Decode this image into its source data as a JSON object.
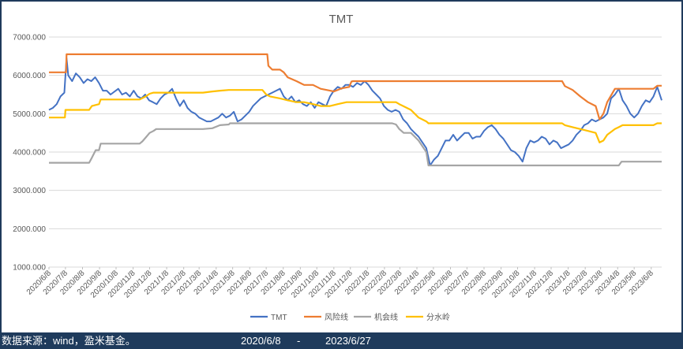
{
  "chart_data": {
    "type": "line",
    "title": "TMT",
    "xlabel": "",
    "ylabel": "",
    "ylim": [
      1000,
      7000
    ],
    "y_ticks": [
      "1000.000",
      "2000.000",
      "3000.000",
      "4000.000",
      "5000.000",
      "6000.000",
      "7000.000"
    ],
    "y_tick_values": [
      1000,
      2000,
      3000,
      4000,
      5000,
      6000,
      7000
    ],
    "x_range": [
      "2020/6/8",
      "2023/6/27"
    ],
    "x_ticks": [
      "2020/6/8",
      "2020/7/8",
      "2020/8/8",
      "2020/9/8",
      "2020/10/8",
      "2020/11/8",
      "2020/12/8",
      "2021/1/8",
      "2021/2/8",
      "2021/3/8",
      "2021/4/8",
      "2021/5/8",
      "2021/6/8",
      "2021/7/8",
      "2021/8/8",
      "2021/9/8",
      "2021/10/8",
      "2021/11/8",
      "2021/12/8",
      "2022/1/8",
      "2022/2/8",
      "2022/3/8",
      "2022/4/8",
      "2022/5/8",
      "2022/6/8",
      "2022/7/8",
      "2022/8/8",
      "2022/9/8",
      "2022/10/8",
      "2022/11/8",
      "2022/12/8",
      "2023/1/8",
      "2023/2/8",
      "2023/3/8",
      "2023/4/8",
      "2023/5/8",
      "2023/6/8"
    ],
    "grid": true,
    "legend": "bottom",
    "series": [
      {
        "name": "TMT",
        "color": "#4472c4",
        "x": [
          "2020/6/8",
          "2020/6/15",
          "2020/6/22",
          "2020/6/29",
          "2020/7/6",
          "2020/7/10",
          "2020/7/13",
          "2020/7/20",
          "2020/7/27",
          "2020/8/3",
          "2020/8/10",
          "2020/8/17",
          "2020/8/24",
          "2020/8/31",
          "2020/9/7",
          "2020/9/14",
          "2020/9/21",
          "2020/9/28",
          "2020/10/12",
          "2020/10/19",
          "2020/10/26",
          "2020/11/2",
          "2020/11/9",
          "2020/11/16",
          "2020/11/23",
          "2020/11/30",
          "2020/12/7",
          "2020/12/14",
          "2020/12/21",
          "2020/12/28",
          "2021/1/4",
          "2021/1/11",
          "2021/1/18",
          "2021/1/25",
          "2021/2/1",
          "2021/2/8",
          "2021/2/15",
          "2021/2/22",
          "2021/3/1",
          "2021/3/8",
          "2021/3/15",
          "2021/3/22",
          "2021/3/29",
          "2021/4/5",
          "2021/4/12",
          "2021/4/19",
          "2021/4/26",
          "2021/5/3",
          "2021/5/10",
          "2021/5/17",
          "2021/5/24",
          "2021/5/31",
          "2021/6/7",
          "2021/6/14",
          "2021/6/21",
          "2021/6/28",
          "2021/7/5",
          "2021/7/12",
          "2021/7/19",
          "2021/7/26",
          "2021/8/2",
          "2021/8/9",
          "2021/8/16",
          "2021/8/23",
          "2021/8/30",
          "2021/9/6",
          "2021/9/13",
          "2021/9/20",
          "2021/9/27",
          "2021/10/4",
          "2021/10/11",
          "2021/10/18",
          "2021/10/25",
          "2021/11/1",
          "2021/11/8",
          "2021/11/15",
          "2021/11/22",
          "2021/11/29",
          "2021/12/6",
          "2021/12/13",
          "2021/12/20",
          "2021/12/27",
          "2022/1/3",
          "2022/1/10",
          "2022/1/17",
          "2022/1/24",
          "2022/1/31",
          "2022/2/7",
          "2022/2/14",
          "2022/2/21",
          "2022/2/28",
          "2022/3/7",
          "2022/3/14",
          "2022/3/21",
          "2022/3/28",
          "2022/4/4",
          "2022/4/11",
          "2022/4/18",
          "2022/4/25",
          "2022/5/2",
          "2022/5/9",
          "2022/5/16",
          "2022/5/23",
          "2022/5/30",
          "2022/6/6",
          "2022/6/13",
          "2022/6/20",
          "2022/6/27",
          "2022/7/4",
          "2022/7/11",
          "2022/7/18",
          "2022/7/25",
          "2022/8/1",
          "2022/8/8",
          "2022/8/15",
          "2022/8/22",
          "2022/8/29",
          "2022/9/5",
          "2022/9/12",
          "2022/9/19",
          "2022/9/26",
          "2022/10/3",
          "2022/10/10",
          "2022/10/17",
          "2022/10/24",
          "2022/10/31",
          "2022/11/7",
          "2022/11/14",
          "2022/11/21",
          "2022/11/28",
          "2022/12/5",
          "2022/12/12",
          "2022/12/19",
          "2022/12/26",
          "2023/1/2",
          "2023/1/9",
          "2023/1/16",
          "2023/1/23",
          "2023/1/30",
          "2023/2/6",
          "2023/2/13",
          "2023/2/20",
          "2023/2/27",
          "2023/3/6",
          "2023/3/13",
          "2023/3/20",
          "2023/3/27",
          "2023/4/3",
          "2023/4/10",
          "2023/4/17",
          "2023/4/24",
          "2023/5/1",
          "2023/5/8",
          "2023/5/15",
          "2023/5/22",
          "2023/5/29",
          "2023/6/5",
          "2023/6/12",
          "2023/6/19",
          "2023/6/27"
        ],
        "y": [
          5100,
          5150,
          5250,
          5450,
          5550,
          6450,
          6000,
          5850,
          6050,
          5950,
          5800,
          5900,
          5850,
          5950,
          5800,
          5600,
          5600,
          5500,
          5650,
          5500,
          5550,
          5450,
          5600,
          5450,
          5400,
          5500,
          5350,
          5300,
          5250,
          5400,
          5500,
          5550,
          5650,
          5400,
          5200,
          5350,
          5150,
          5050,
          5000,
          4900,
          4850,
          4800,
          4800,
          4850,
          4900,
          5000,
          4900,
          4950,
          5050,
          4800,
          4850,
          4950,
          5050,
          5200,
          5300,
          5400,
          5450,
          5500,
          5550,
          5600,
          5650,
          5450,
          5350,
          5450,
          5300,
          5350,
          5250,
          5200,
          5300,
          5150,
          5300,
          5250,
          5200,
          5450,
          5600,
          5700,
          5650,
          5750,
          5750,
          5700,
          5800,
          5750,
          5850,
          5750,
          5600,
          5500,
          5400,
          5200,
          5100,
          5050,
          5100,
          5050,
          4850,
          4750,
          4600,
          4500,
          4400,
          4250,
          4100,
          3650,
          3800,
          3900,
          4100,
          4300,
          4300,
          4450,
          4300,
          4400,
          4500,
          4500,
          4350,
          4400,
          4400,
          4550,
          4650,
          4700,
          4600,
          4450,
          4350,
          4200,
          4050,
          4000,
          3900,
          3750,
          4100,
          4300,
          4250,
          4300,
          4400,
          4350,
          4200,
          4300,
          4250,
          4100,
          4150,
          4200,
          4300,
          4450,
          4550,
          4700,
          4750,
          4850,
          4800,
          4850,
          4900,
          5000,
          5400,
          5500,
          5650,
          5350,
          5200,
          5000,
          4900,
          5000,
          5200,
          5350,
          5300,
          5450,
          5700,
          5350
        ]
      },
      {
        "name": "风险线",
        "color": "#ed7d31",
        "x": [
          "2020/6/8",
          "2020/7/9",
          "2020/7/10",
          "2021/7/10",
          "2021/7/12",
          "2021/7/19",
          "2021/8/2",
          "2021/8/9",
          "2021/8/16",
          "2021/9/1",
          "2021/9/15",
          "2021/10/1",
          "2021/10/15",
          "2021/11/1",
          "2021/11/8",
          "2021/11/22",
          "2021/12/6",
          "2021/12/10",
          "2021/12/13",
          "2022/12/28",
          "2023/1/2",
          "2023/1/16",
          "2023/1/30",
          "2023/2/13",
          "2023/2/27",
          "2023/3/6",
          "2023/3/13",
          "2023/3/20",
          "2023/4/3",
          "2023/4/10",
          "2023/4/17",
          "2023/6/12",
          "2023/6/19",
          "2023/6/27"
        ],
        "y": [
          6080,
          6080,
          6550,
          6550,
          6250,
          6150,
          6150,
          6080,
          5950,
          5850,
          5750,
          5750,
          5650,
          5600,
          5580,
          5660,
          5700,
          5840,
          5850,
          5850,
          5720,
          5620,
          5450,
          5300,
          5200,
          4850,
          5000,
          5300,
          5650,
          5650,
          5650,
          5650,
          5730,
          5730
        ]
      },
      {
        "name": "机会线",
        "color": "#a5a5a5",
        "x": [
          "2020/6/8",
          "2020/8/20",
          "2020/8/25",
          "2020/9/1",
          "2020/9/7",
          "2020/9/10",
          "2020/11/20",
          "2020/11/25",
          "2020/12/1",
          "2020/12/8",
          "2020/12/15",
          "2020/12/20",
          "2021/3/15",
          "2021/4/1",
          "2021/4/15",
          "2021/5/1",
          "2021/5/3",
          "2022/2/22",
          "2022/3/1",
          "2022/3/7",
          "2022/3/15",
          "2022/3/28",
          "2022/4/11",
          "2022/4/25",
          "2022/4/29",
          "2023/4/10",
          "2023/4/15",
          "2023/6/27"
        ],
        "y": [
          3720,
          3720,
          3850,
          4050,
          4050,
          4220,
          4220,
          4280,
          4380,
          4500,
          4550,
          4600,
          4600,
          4620,
          4700,
          4720,
          4750,
          4750,
          4720,
          4600,
          4500,
          4500,
          4300,
          4000,
          3650,
          3650,
          3750,
          3750
        ]
      },
      {
        "name": "分水岭",
        "color": "#ffc000",
        "x": [
          "2020/6/8",
          "2020/7/7",
          "2020/7/8",
          "2020/8/20",
          "2020/8/25",
          "2020/9/7",
          "2020/9/10",
          "2020/11/20",
          "2020/12/1",
          "2020/12/8",
          "2020/12/15",
          "2021/3/15",
          "2021/4/1",
          "2021/4/15",
          "2021/5/1",
          "2021/7/1",
          "2021/7/8",
          "2021/7/15",
          "2021/8/2",
          "2021/8/16",
          "2021/9/1",
          "2021/9/15",
          "2021/10/1",
          "2021/10/15",
          "2021/11/1",
          "2021/11/15",
          "2021/12/1",
          "2022/1/1",
          "2022/3/1",
          "2022/3/7",
          "2022/3/14",
          "2022/3/28",
          "2022/4/4",
          "2022/4/11",
          "2022/4/25",
          "2022/4/29",
          "2022/12/28",
          "2023/1/2",
          "2023/1/16",
          "2023/1/30",
          "2023/2/13",
          "2023/2/27",
          "2023/3/6",
          "2023/3/13",
          "2023/3/20",
          "2023/4/3",
          "2023/4/10",
          "2023/4/17",
          "2023/6/12",
          "2023/6/19",
          "2023/6/27"
        ],
        "y": [
          4900,
          4900,
          5100,
          5100,
          5200,
          5250,
          5370,
          5370,
          5450,
          5520,
          5550,
          5550,
          5580,
          5600,
          5620,
          5620,
          5500,
          5450,
          5400,
          5350,
          5300,
          5300,
          5250,
          5200,
          5200,
          5250,
          5300,
          5300,
          5300,
          5250,
          5200,
          5100,
          5000,
          4900,
          4800,
          4750,
          4750,
          4700,
          4650,
          4600,
          4550,
          4500,
          4250,
          4300,
          4450,
          4600,
          4650,
          4700,
          4700,
          4750,
          4750
        ]
      }
    ]
  },
  "legend_items": [
    {
      "label": "TMT",
      "color": "#4472c4"
    },
    {
      "label": "风险线",
      "color": "#ed7d31"
    },
    {
      "label": "机会线",
      "color": "#a5a5a5"
    },
    {
      "label": "分水岭",
      "color": "#ffc000"
    }
  ],
  "footer": {
    "source": "数据来源：wind，盈米基金。",
    "start_date": "2020/6/8",
    "separator": "-",
    "end_date": "2023/6/27"
  }
}
